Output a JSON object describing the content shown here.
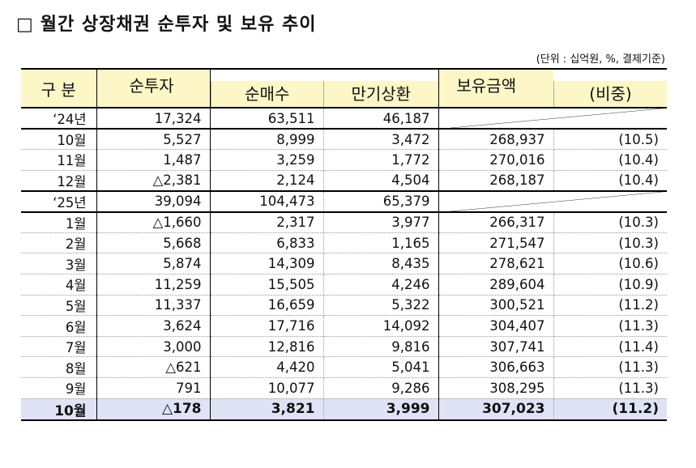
{
  "title": {
    "checkbox": "□",
    "text": "월간 상장채권 순투자 및 보유 추이"
  },
  "unit_note": "(단위 : 십억원, %, 결제기준)",
  "headers": {
    "category": "구 분",
    "net_investment": "순투자",
    "net_purchase": "순매수",
    "maturity": "만기상환",
    "holdings": "보유금액",
    "share": "(비중)"
  },
  "rows": [
    {
      "label": "‘24년",
      "net": "17,324",
      "buy": "63,511",
      "mat": "46,187",
      "hold": "",
      "share": "",
      "type": "year"
    },
    {
      "label": "10월",
      "net": "5,527",
      "buy": "8,999",
      "mat": "3,472",
      "hold": "268,937",
      "share": "(10.5)",
      "type": "month"
    },
    {
      "label": "11월",
      "net": "1,487",
      "buy": "3,259",
      "mat": "1,772",
      "hold": "270,016",
      "share": "(10.4)",
      "type": "month"
    },
    {
      "label": "12월",
      "net": "△2,381",
      "buy": "2,124",
      "mat": "4,504",
      "hold": "268,187",
      "share": "(10.4)",
      "type": "pre-year"
    },
    {
      "label": "‘25년",
      "net": "39,094",
      "buy": "104,473",
      "mat": "65,379",
      "hold": "",
      "share": "",
      "type": "year"
    },
    {
      "label": "1월",
      "net": "△1,660",
      "buy": "2,317",
      "mat": "3,977",
      "hold": "266,317",
      "share": "(10.3)",
      "type": "month"
    },
    {
      "label": "2월",
      "net": "5,668",
      "buy": "6,833",
      "mat": "1,165",
      "hold": "271,547",
      "share": "(10.3)",
      "type": "month"
    },
    {
      "label": "3월",
      "net": "5,874",
      "buy": "14,309",
      "mat": "8,435",
      "hold": "278,621",
      "share": "(10.6)",
      "type": "month"
    },
    {
      "label": "4월",
      "net": "11,259",
      "buy": "15,505",
      "mat": "4,246",
      "hold": "289,604",
      "share": "(10.9)",
      "type": "month"
    },
    {
      "label": "5월",
      "net": "11,337",
      "buy": "16,659",
      "mat": "5,322",
      "hold": "300,521",
      "share": "(11.2)",
      "type": "month"
    },
    {
      "label": "6월",
      "net": "3,624",
      "buy": "17,716",
      "mat": "14,092",
      "hold": "304,407",
      "share": "(11.3)",
      "type": "month"
    },
    {
      "label": "7월",
      "net": "3,000",
      "buy": "12,816",
      "mat": "9,816",
      "hold": "307,741",
      "share": "(11.4)",
      "type": "month"
    },
    {
      "label": "8월",
      "net": "△621",
      "buy": "4,420",
      "mat": "5,041",
      "hold": "306,663",
      "share": "(11.3)",
      "type": "month"
    },
    {
      "label": "9월",
      "net": "791",
      "buy": "10,077",
      "mat": "9,286",
      "hold": "308,295",
      "share": "(11.3)",
      "type": "month"
    },
    {
      "label": "10월",
      "net": "△178",
      "buy": "3,821",
      "mat": "3,999",
      "hold": "307,023",
      "share": "(11.2)",
      "type": "last"
    }
  ]
}
